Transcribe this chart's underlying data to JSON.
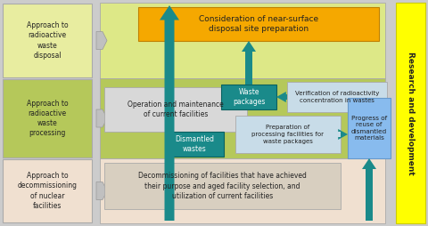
{
  "fig_width": 4.8,
  "fig_height": 2.54,
  "dpi": 100,
  "bg_outer": "#d8d8d8",
  "left_panel_colors": [
    "#e8eda0",
    "#b5c85a",
    "#f0e0d0"
  ],
  "left_panel_texts": [
    "Approach to\nradioactive\nwaste\ndisposal",
    "Approach to\nradioactive\nwaste\nprocessing",
    "Approach to\ndecommissioning\nof nuclear\nfacilities"
  ],
  "main_bg_colors": [
    "#e8eda0",
    "#b5c85a",
    "#f0e0d0"
  ],
  "right_bar_color": "#ffff00",
  "right_bar_text": "Research and development",
  "orange_box_color": "#f5a800",
  "orange_box_text": "Consideration of near-surface\ndisposal site preparation",
  "op_box_color": "#d8d8d8",
  "op_box_text": "Operation and maintenance\nof current facilities",
  "waste_pkg_color": "#1a8a8a",
  "waste_pkg_text": "Waste\npackages",
  "verif_box_color": "#c8dce8",
  "verif_box_text": "Verification of radioactivity\nconcentration in wastes",
  "prep_box_color": "#c8dce8",
  "prep_box_text": "Preparation of\nprocessing facilities for\nwaste packages",
  "progress_box_color": "#88bbee",
  "progress_box_text": "Progress of\nreuse of\ndismantled\nmaterials",
  "decom_box_color": "#d8cfc0",
  "decom_box_text": "Decommissioning of facilities that have achieved\ntheir purpose and aged facility selection, and\nutilization of current facilities",
  "dismantled_color": "#1a8a8a",
  "dismantled_text": "Dismantled\nwastes",
  "arrow_color": "#1a8a8a"
}
